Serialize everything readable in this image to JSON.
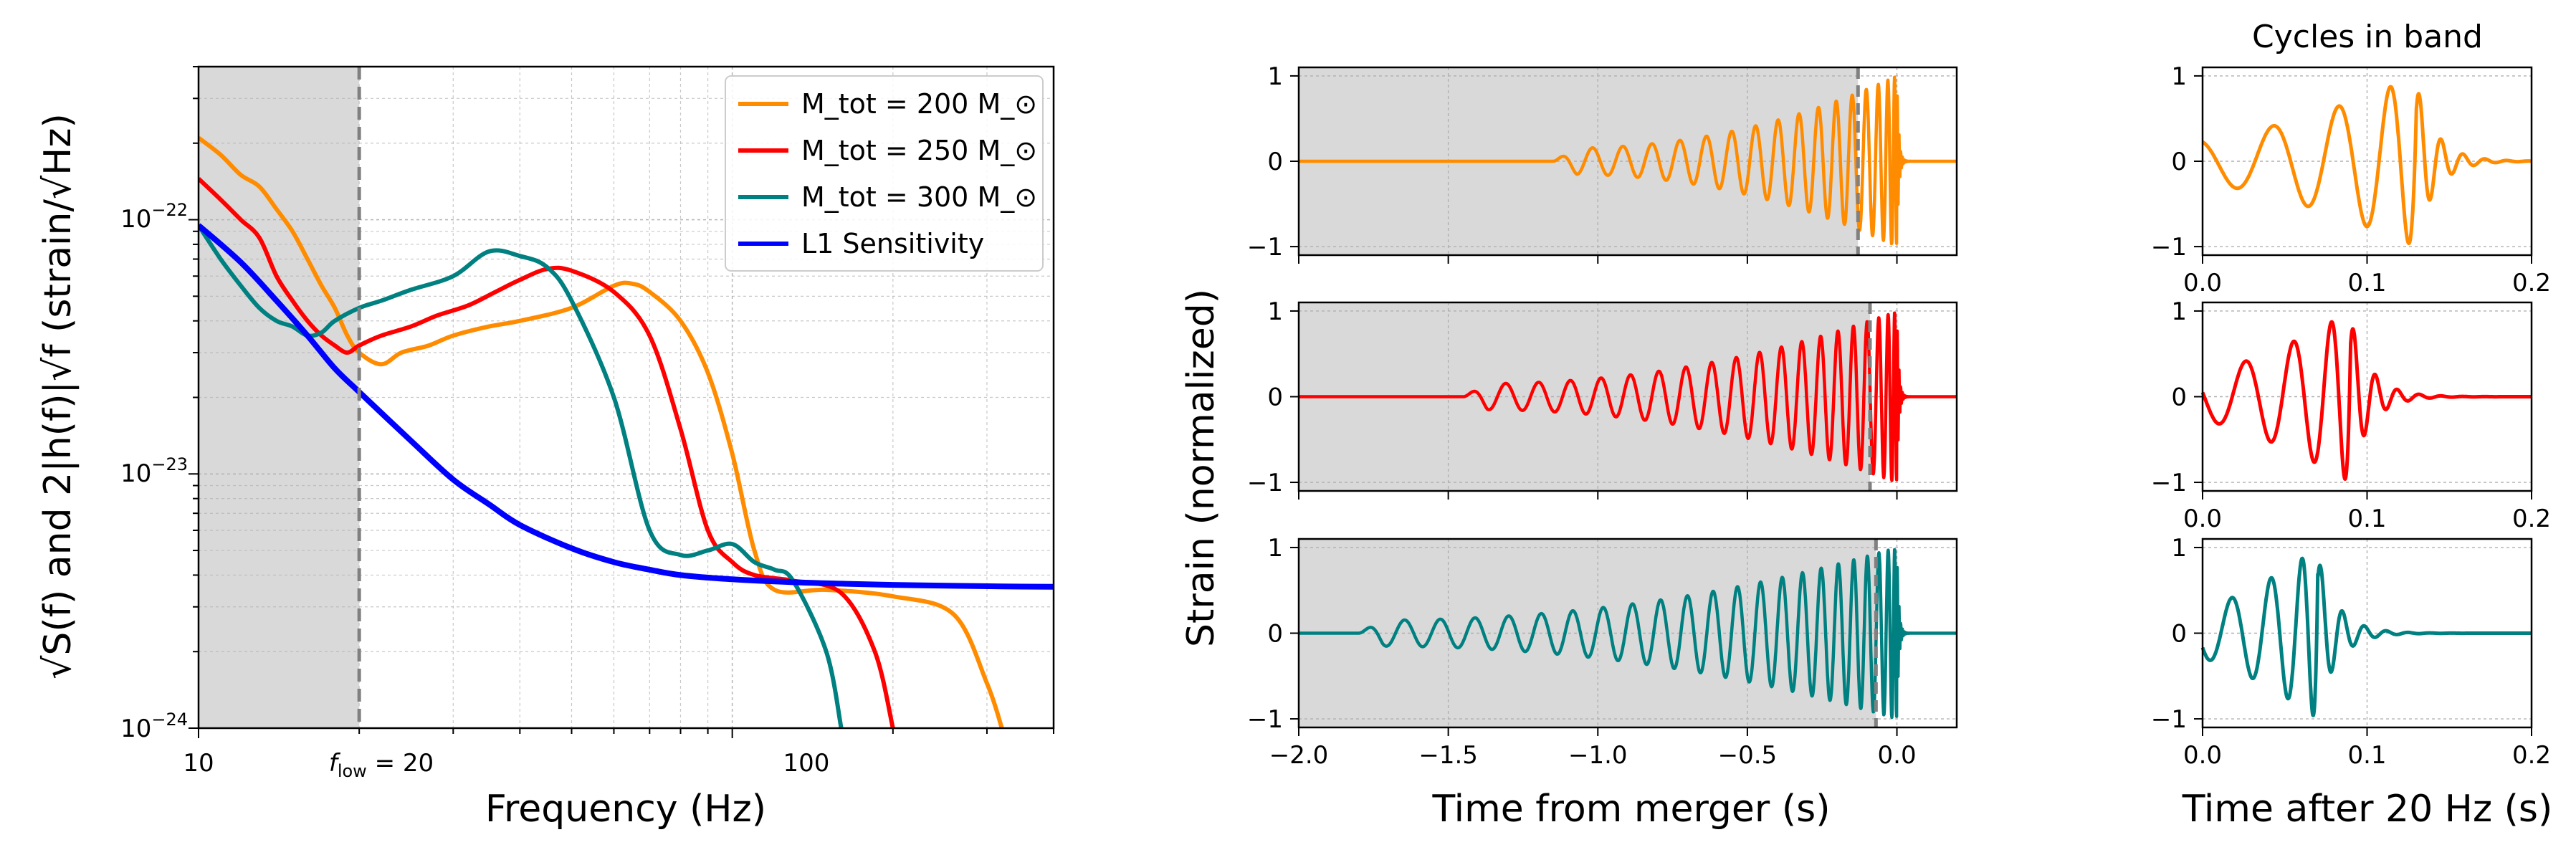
{
  "figure": {
    "colors": {
      "m200": "#ff8c00",
      "m250": "#ff0000",
      "m300": "#008080",
      "sensitivity": "#0000ff",
      "shade": "#d9d9d9",
      "cutoff": "#808080"
    }
  },
  "chart_data": [
    {
      "id": "spectrum",
      "type": "line",
      "xscale": "log",
      "yscale": "log",
      "xlim": [
        10,
        400
      ],
      "ylim": [
        1e-24,
        4e-22
      ],
      "xlabel": "Frequency (Hz)",
      "ylabel": "√S(f) and 2|h(f)|√f (strain/√Hz)",
      "x_ticks": [
        "10",
        "f_low = 20",
        "100"
      ],
      "y_ticks": [
        "10^-24",
        "10^-23",
        "10^-22"
      ],
      "shaded_region": [
        10,
        20
      ],
      "cutoff_line_x": 20,
      "legend_position": "upper-right",
      "series": [
        {
          "name": "M_tot = 200 M_⊙",
          "color": "#ff8c00",
          "x": [
            10,
            11,
            12,
            13,
            14,
            15,
            16,
            17,
            18,
            19,
            20,
            22,
            24,
            27,
            30,
            35,
            40,
            50,
            60,
            65,
            70,
            80,
            90,
            100,
            110,
            120,
            150,
            200,
            260,
            300,
            320
          ],
          "y": [
            2.1e-22,
            1.8e-22,
            1.5e-22,
            1.35e-22,
            1.1e-22,
            9e-23,
            7e-23,
            5.5e-23,
            4.5e-23,
            3.5e-23,
            3e-23,
            2.7e-23,
            3e-23,
            3.2e-23,
            3.5e-23,
            3.8e-23,
            4e-23,
            4.5e-23,
            5.5e-23,
            5.6e-23,
            5.2e-23,
            4e-23,
            2.5e-23,
            1.2e-23,
            5e-24,
            3.5e-24,
            3.5e-24,
            3.3e-24,
            2.8e-24,
            1.5e-24,
            1e-24
          ]
        },
        {
          "name": "M_tot = 250 M_⊙",
          "color": "#ff0000",
          "x": [
            10,
            11,
            12,
            13,
            14,
            15,
            16,
            17,
            18,
            19,
            20,
            22,
            25,
            28,
            32,
            36,
            40,
            45,
            50,
            60,
            70,
            80,
            90,
            100,
            110,
            130,
            160,
            185,
            200
          ],
          "y": [
            1.45e-22,
            1.2e-22,
            1e-22,
            8.5e-23,
            6e-23,
            4.8e-23,
            4e-23,
            3.5e-23,
            3.2e-23,
            3e-23,
            3.2e-23,
            3.5e-23,
            3.8e-23,
            4.2e-23,
            4.6e-23,
            5.2e-23,
            5.8e-23,
            6.4e-23,
            6.3e-23,
            5.2e-23,
            3.5e-23,
            1.5e-23,
            6e-24,
            4.5e-24,
            4e-24,
            3.8e-24,
            3.4e-24,
            2e-24,
            1e-24
          ]
        },
        {
          "name": "M_tot = 300 M_⊙",
          "color": "#008080",
          "x": [
            10,
            11,
            12,
            13,
            14,
            15,
            16,
            17,
            18,
            20,
            22,
            25,
            30,
            35,
            40,
            45,
            50,
            60,
            70,
            80,
            90,
            100,
            110,
            120,
            130,
            150,
            160
          ],
          "y": [
            9.5e-23,
            7e-23,
            5.5e-23,
            4.5e-23,
            4e-23,
            3.8e-23,
            3.5e-23,
            3.6e-23,
            4e-23,
            4.5e-23,
            4.8e-23,
            5.3e-23,
            6e-23,
            7.5e-23,
            7.2e-23,
            6.5e-23,
            4.8e-23,
            2e-23,
            6e-24,
            4.8e-24,
            5e-24,
            5.3e-24,
            4.5e-24,
            4.2e-24,
            3.8e-24,
            2e-24,
            1e-24
          ]
        },
        {
          "name": "L1 Sensitivity",
          "color": "#0000ff",
          "x": [
            10,
            12,
            14,
            16,
            18,
            20,
            25,
            30,
            35,
            40,
            50,
            60,
            70,
            80,
            100,
            130,
            160,
            200,
            260,
            320,
            400
          ],
          "y": [
            9.5e-23,
            6.8e-23,
            4.8e-23,
            3.5e-23,
            2.6e-23,
            2.1e-23,
            1.35e-23,
            9.5e-24,
            7.6e-24,
            6.3e-24,
            5.1e-24,
            4.5e-24,
            4.2e-24,
            4e-24,
            3.85e-24,
            3.75e-24,
            3.7e-24,
            3.66e-24,
            3.63e-24,
            3.61e-24,
            3.6e-24
          ]
        }
      ]
    },
    {
      "id": "time-domain",
      "type": "line",
      "subplots": 3,
      "xlim": [
        -2.0,
        0.2
      ],
      "ylim": [
        -1.1,
        1.1
      ],
      "xlabel": "Time from merger (s)",
      "ylabel": "Strain (normalized)",
      "x_ticks": [
        "−2.0",
        "−1.5",
        "−1.0",
        "−0.5",
        "0.0"
      ],
      "y_ticks": [
        "−1",
        "0",
        "1"
      ],
      "series": [
        {
          "name": "M_tot = 200 M_⊙",
          "color": "#ff8c00",
          "band_entry_time": -0.13,
          "onset_time": -1.15,
          "cycles_before_band": 11
        },
        {
          "name": "M_tot = 250 M_⊙",
          "color": "#ff0000",
          "band_entry_time": -0.09,
          "onset_time": -1.45,
          "cycles_before_band": 14
        },
        {
          "name": "M_tot = 300 M_⊙",
          "color": "#008080",
          "band_entry_time": -0.07,
          "onset_time": -1.8,
          "cycles_before_band": 17
        }
      ]
    },
    {
      "id": "cycles-in-band",
      "type": "line",
      "subplots": 3,
      "title": "Cycles in band",
      "xlim": [
        0.0,
        0.2
      ],
      "ylim": [
        -1.1,
        1.1
      ],
      "xlabel": "Time after 20 Hz (s)",
      "x_ticks": [
        "0.0",
        "0.1",
        "0.2"
      ],
      "y_ticks": [
        "−1",
        "0",
        "1"
      ],
      "series": [
        {
          "name": "M_tot = 200 M_⊙",
          "color": "#ff8c00",
          "merger_time": 0.13
        },
        {
          "name": "M_tot = 250 M_⊙",
          "color": "#ff0000",
          "merger_time": 0.09
        },
        {
          "name": "M_tot = 300 M_⊙",
          "color": "#008080",
          "merger_time": 0.07
        }
      ]
    }
  ]
}
